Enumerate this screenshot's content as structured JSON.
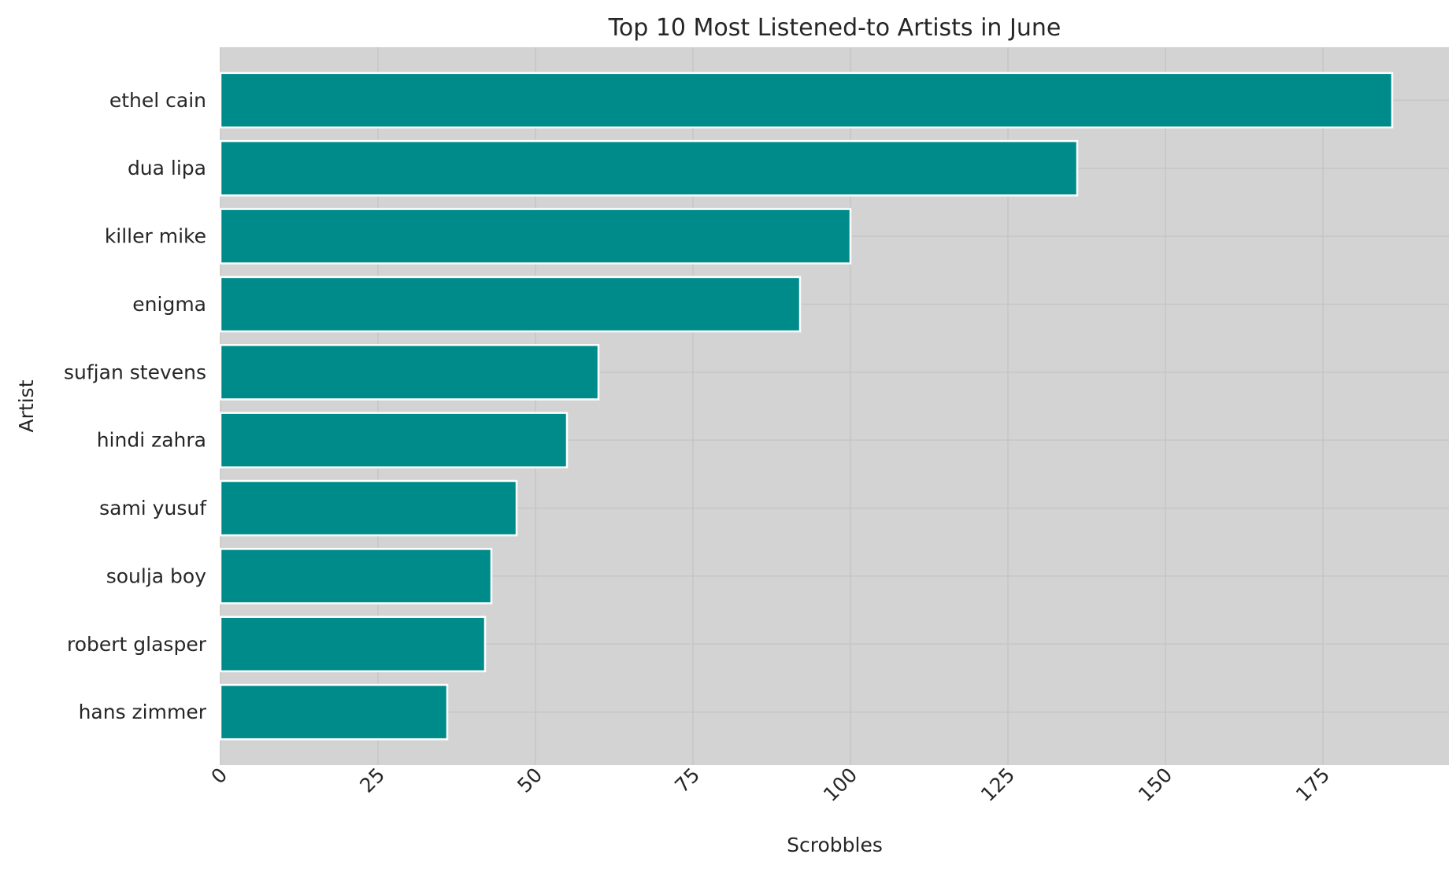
{
  "chart_data": {
    "type": "bar",
    "orientation": "horizontal",
    "title": "Top 10 Most Listened-to Artists in June",
    "xlabel": "Scrobbles",
    "ylabel": "Artist",
    "xlim": [
      0,
      195
    ],
    "xticks": [
      0,
      25,
      50,
      75,
      100,
      125,
      150,
      175
    ],
    "categories": [
      "ethel cain",
      "dua lipa",
      "killer mike",
      "enigma",
      "sufjan stevens",
      "hindi zahra",
      "sami yusuf",
      "soulja boy",
      "robert glasper",
      "hans zimmer"
    ],
    "values": [
      186,
      136,
      100,
      92,
      60,
      55,
      47,
      43,
      42,
      36
    ],
    "grid": true,
    "legend": "none",
    "colors": {
      "bar": "#008b8b",
      "bar_edge": "#ffffff",
      "plot_bg": "#d3d3d3",
      "grid": "#c6c6c6",
      "text": "#262626"
    }
  }
}
